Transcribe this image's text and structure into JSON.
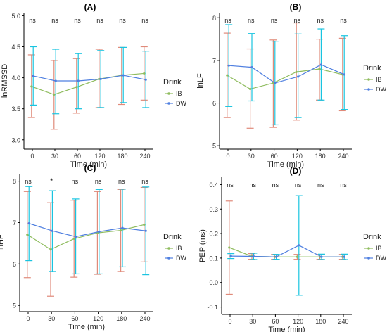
{
  "colors": {
    "IB": "#8fbc5e",
    "DW": "#4f7fe0",
    "IB_error": "#e08a7a",
    "DW_error": "#19c4e0",
    "axis": "#000000",
    "text": "#1a1a1a",
    "tick_text": "#333333"
  },
  "chart_data": [
    {
      "panel": "(A)",
      "type": "line",
      "xlabel": "Time (min)",
      "ylabel": "lnRMSSD",
      "x": [
        "0",
        "30",
        "60",
        "120",
        "180",
        "240"
      ],
      "ylim": [
        2.85,
        5.05
      ],
      "yticks": [
        3.0,
        3.5,
        4.0,
        4.5,
        5.0
      ],
      "ytick_labels": [
        "3.0",
        "3.5",
        "4.0",
        "4.5",
        "5.0"
      ],
      "significance": [
        "ns",
        "ns",
        "ns",
        "ns",
        "ns",
        "ns"
      ],
      "legend_title": "Drink",
      "series": [
        {
          "name": "IB",
          "values": [
            3.86,
            3.73,
            3.85,
            3.98,
            4.04,
            4.07
          ],
          "err_low": [
            3.36,
            3.17,
            3.43,
            3.52,
            3.57,
            3.64
          ],
          "err_high": [
            4.37,
            4.28,
            4.31,
            4.46,
            4.49,
            4.5
          ]
        },
        {
          "name": "DW",
          "values": [
            4.03,
            3.95,
            3.95,
            3.98,
            4.04,
            3.97
          ],
          "err_low": [
            3.56,
            3.42,
            3.5,
            3.52,
            3.6,
            3.52
          ],
          "err_high": [
            4.5,
            4.46,
            4.39,
            4.44,
            4.49,
            4.43
          ]
        }
      ]
    },
    {
      "panel": "(B)",
      "type": "line",
      "xlabel": "Time (min)",
      "ylabel": "lnLF",
      "x": [
        "0",
        "30",
        "60",
        "120",
        "180",
        "240"
      ],
      "ylim": [
        4.92,
        8.12
      ],
      "yticks": [
        5,
        6,
        7,
        8
      ],
      "ytick_labels": [
        "5",
        "6",
        "7",
        "8"
      ],
      "significance": [
        "ns",
        "ns",
        "ns",
        "ns",
        "ns",
        "ns"
      ],
      "legend_title": "Drink",
      "series": [
        {
          "name": "IB",
          "values": [
            6.65,
            6.33,
            6.47,
            6.73,
            6.8,
            6.67
          ],
          "err_low": [
            5.66,
            5.41,
            5.43,
            5.6,
            6.07,
            5.82
          ],
          "err_high": [
            7.64,
            7.27,
            7.48,
            7.88,
            7.5,
            7.52
          ]
        },
        {
          "name": "DW",
          "values": [
            6.88,
            6.84,
            6.47,
            6.62,
            6.9,
            6.67
          ],
          "err_low": [
            5.92,
            6.05,
            5.49,
            5.66,
            6.07,
            5.85
          ],
          "err_high": [
            7.84,
            7.63,
            7.45,
            7.62,
            7.74,
            7.58
          ]
        }
      ]
    },
    {
      "panel": "(C)",
      "type": "line",
      "xlabel": "Time (min)",
      "ylabel": "lnHF",
      "x": [
        "0",
        "30",
        "60",
        "120",
        "180",
        "240"
      ],
      "ylim": [
        4.85,
        8.18
      ],
      "yticks": [
        5,
        6,
        7,
        8
      ],
      "ytick_labels": [
        "5",
        "6",
        "7",
        "8"
      ],
      "significance": [
        "ns",
        "*",
        "ns",
        "ns",
        "ns",
        "ns"
      ],
      "legend_title": "Drink",
      "series": [
        {
          "name": "IB",
          "values": [
            6.71,
            6.35,
            6.61,
            6.75,
            6.81,
            6.95
          ],
          "err_low": [
            5.67,
            5.22,
            5.68,
            5.75,
            5.82,
            6.05
          ],
          "err_high": [
            7.75,
            7.48,
            7.54,
            7.75,
            7.8,
            7.85
          ]
        },
        {
          "name": "DW",
          "values": [
            6.98,
            6.8,
            6.66,
            6.78,
            6.87,
            6.8
          ],
          "err_low": [
            6.08,
            5.82,
            5.76,
            5.76,
            5.93,
            5.74
          ],
          "err_high": [
            7.87,
            7.77,
            7.57,
            7.8,
            7.81,
            7.86
          ]
        }
      ]
    },
    {
      "panel": "(D)",
      "type": "line",
      "xlabel": "Time (min)",
      "ylabel": "PEP (ms)",
      "x": [
        "0",
        "30",
        "60",
        "120",
        "180",
        "240"
      ],
      "ylim": [
        -0.13,
        0.43
      ],
      "yticks": [
        -0.1,
        0.0,
        0.1,
        0.2,
        0.3,
        0.4
      ],
      "ytick_labels": [
        "-0.1",
        "0.0",
        "0.1",
        "0.2",
        "0.3",
        "0.4"
      ],
      "significance": [
        "ns",
        "ns",
        "ns",
        "ns",
        "ns",
        "ns"
      ],
      "legend_title": "Drink",
      "series": [
        {
          "name": "IB",
          "values": [
            0.143,
            0.107,
            0.105,
            0.105,
            0.105,
            0.105
          ],
          "err_low": [
            -0.048,
            0.095,
            0.095,
            0.095,
            0.095,
            0.095
          ],
          "err_high": [
            0.333,
            0.118,
            0.115,
            0.115,
            0.115,
            0.115
          ]
        },
        {
          "name": "DW",
          "values": [
            0.108,
            0.107,
            0.105,
            0.152,
            0.105,
            0.105
          ],
          "err_low": [
            0.098,
            0.094,
            0.095,
            -0.052,
            0.094,
            0.094
          ],
          "err_high": [
            0.118,
            0.12,
            0.115,
            0.355,
            0.116,
            0.116
          ]
        }
      ]
    }
  ]
}
